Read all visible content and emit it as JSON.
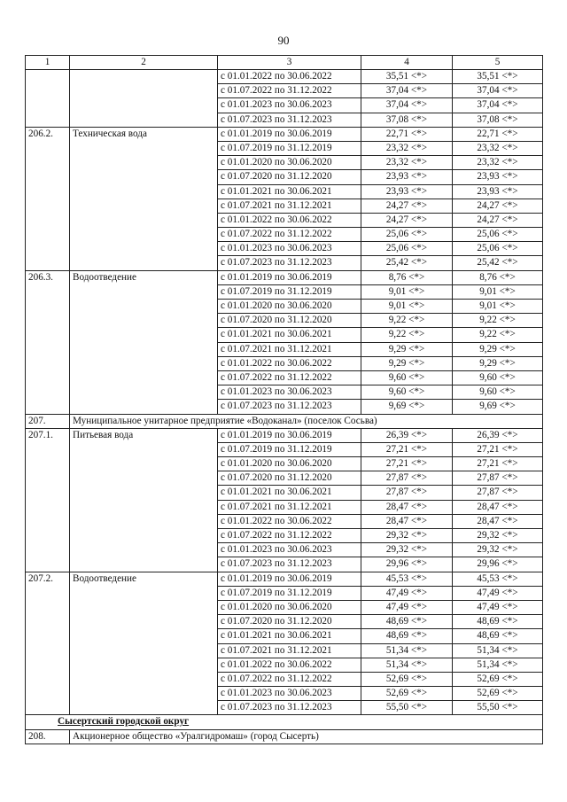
{
  "page_number": "90",
  "header": [
    "1",
    "2",
    "3",
    "4",
    "5"
  ],
  "continuation_rows": [
    [
      "с 01.01.2022 по 30.06.2022",
      "35,51 <*>",
      "35,51 <*>"
    ],
    [
      "с 01.07.2022 по 31.12.2022",
      "37,04 <*>",
      "37,04 <*>"
    ],
    [
      "с 01.01.2023 по 30.06.2023",
      "37,04 <*>",
      "37,04 <*>"
    ],
    [
      "с 01.07.2023 по 31.12.2023",
      "37,08 <*>",
      "37,08 <*>"
    ]
  ],
  "groups": [
    {
      "num": "206.2.",
      "name": "Техническая вода",
      "rows": [
        [
          "с 01.01.2019 по 30.06.2019",
          "22,71 <*>",
          "22,71 <*>"
        ],
        [
          "с 01.07.2019 по 31.12.2019",
          "23,32 <*>",
          "23,32 <*>"
        ],
        [
          "с 01.01.2020 по 30.06.2020",
          "23,32 <*>",
          "23,32 <*>"
        ],
        [
          "с 01.07.2020 по 31.12.2020",
          "23,93 <*>",
          "23,93 <*>"
        ],
        [
          "с 01.01.2021 по 30.06.2021",
          "23,93 <*>",
          "23,93 <*>"
        ],
        [
          "с 01.07.2021 по 31.12.2021",
          "24,27 <*>",
          "24,27 <*>"
        ],
        [
          "с 01.01.2022 по 30.06.2022",
          "24,27 <*>",
          "24,27 <*>"
        ],
        [
          "с 01.07.2022 по 31.12.2022",
          "25,06 <*>",
          "25,06 <*>"
        ],
        [
          "с 01.01.2023 по 30.06.2023",
          "25,06 <*>",
          "25,06 <*>"
        ],
        [
          "с 01.07.2023 по 31.12.2023",
          "25,42 <*>",
          "25,42 <*>"
        ]
      ]
    },
    {
      "num": "206.3.",
      "name": "Водоотведение",
      "rows": [
        [
          "с 01.01.2019 по 30.06.2019",
          "8,76 <*>",
          "8,76 <*>"
        ],
        [
          "с 01.07.2019 по 31.12.2019",
          "9,01 <*>",
          "9,01 <*>"
        ],
        [
          "с 01.01.2020 по 30.06.2020",
          "9,01 <*>",
          "9,01 <*>"
        ],
        [
          "с 01.07.2020 по 31.12.2020",
          "9,22 <*>",
          "9,22 <*>"
        ],
        [
          "с 01.01.2021 по 30.06.2021",
          "9,22 <*>",
          "9,22 <*>"
        ],
        [
          "с 01.07.2021 по 31.12.2021",
          "9,29 <*>",
          "9,29 <*>"
        ],
        [
          "с 01.01.2022 по 30.06.2022",
          "9,29 <*>",
          "9,29 <*>"
        ],
        [
          "с 01.07.2022 по 31.12.2022",
          "9,60 <*>",
          "9,60 <*>"
        ],
        [
          "с 01.01.2023 по 30.06.2023",
          "9,60 <*>",
          "9,60 <*>"
        ],
        [
          "с 01.07.2023 по 31.12.2023",
          "9,69 <*>",
          "9,69 <*>"
        ]
      ]
    },
    {
      "num": "207.",
      "org": "Муниципальное унитарное предприятие «Водоканал» (поселок Сосьва)"
    },
    {
      "num": "207.1.",
      "name": "Питьевая вода",
      "rows": [
        [
          "с 01.01.2019 по 30.06.2019",
          "26,39 <*>",
          "26,39 <*>"
        ],
        [
          "с 01.07.2019 по 31.12.2019",
          "27,21 <*>",
          "27,21 <*>"
        ],
        [
          "с 01.01.2020 по 30.06.2020",
          "27,21 <*>",
          "27,21 <*>"
        ],
        [
          "с 01.07.2020 по 31.12.2020",
          "27,87 <*>",
          "27,87 <*>"
        ],
        [
          "с 01.01.2021 по 30.06.2021",
          "27,87 <*>",
          "27,87 <*>"
        ],
        [
          "с 01.07.2021 по 31.12.2021",
          "28,47 <*>",
          "28,47 <*>"
        ],
        [
          "с 01.01.2022 по 30.06.2022",
          "28,47 <*>",
          "28,47 <*>"
        ],
        [
          "с 01.07.2022 по 31.12.2022",
          "29,32 <*>",
          "29,32 <*>"
        ],
        [
          "с 01.01.2023 по 30.06.2023",
          "29,32 <*>",
          "29,32 <*>"
        ],
        [
          "с 01.07.2023 по 31.12.2023",
          "29,96 <*>",
          "29,96 <*>"
        ]
      ]
    },
    {
      "num": "207.2.",
      "name": "Водоотведение",
      "rows": [
        [
          "с 01.01.2019 по 30.06.2019",
          "45,53 <*>",
          "45,53 <*>"
        ],
        [
          "с 01.07.2019 по 31.12.2019",
          "47,49 <*>",
          "47,49 <*>"
        ],
        [
          "с 01.01.2020 по 30.06.2020",
          "47,49 <*>",
          "47,49 <*>"
        ],
        [
          "с 01.07.2020 по 31.12.2020",
          "48,69 <*>",
          "48,69 <*>"
        ],
        [
          "с 01.01.2021 по 30.06.2021",
          "48,69 <*>",
          "48,69 <*>"
        ],
        [
          "с 01.07.2021 по 31.12.2021",
          "51,34 <*>",
          "51,34 <*>"
        ],
        [
          "с 01.01.2022 по 30.06.2022",
          "51,34 <*>",
          "51,34 <*>"
        ],
        [
          "с 01.07.2022 по 31.12.2022",
          "52,69 <*>",
          "52,69 <*>"
        ],
        [
          "с 01.01.2023 по 30.06.2023",
          "52,69 <*>",
          "52,69 <*>"
        ],
        [
          "с 01.07.2023 по 31.12.2023",
          "55,50 <*>",
          "55,50 <*>"
        ]
      ]
    },
    {
      "region": "Сысертский городской округ"
    },
    {
      "num": "208.",
      "org": "Акционерное общество «Уралгидромаш» (город Сысерть)"
    }
  ]
}
